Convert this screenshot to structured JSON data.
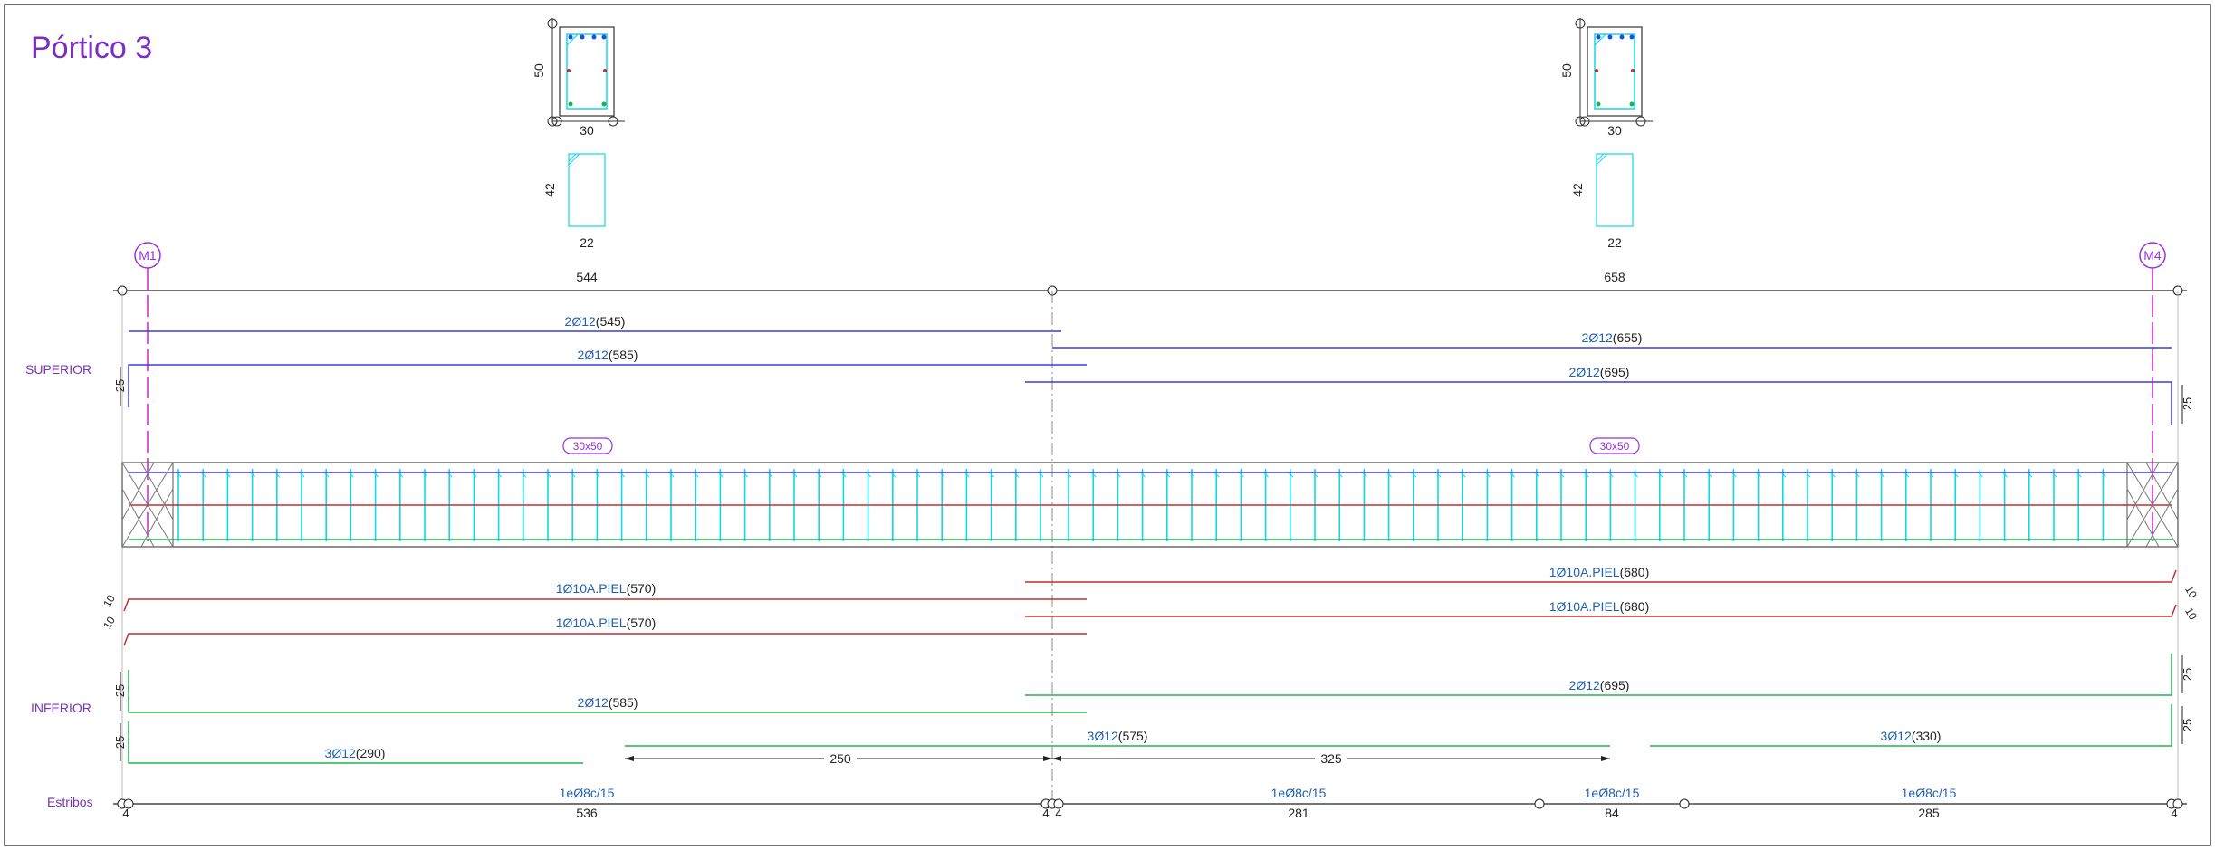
{
  "title": "Pórtico 3",
  "sections": [
    {
      "width": "30",
      "height": "50",
      "stirrup_width": "22",
      "stirrup_height": "42"
    },
    {
      "width": "30",
      "height": "50",
      "stirrup_width": "22",
      "stirrup_height": "42"
    }
  ],
  "axes": [
    {
      "label": "M1",
      "color": "#9b30d9"
    },
    {
      "label": "M4",
      "color": "#9b30d9"
    }
  ],
  "spans": [
    {
      "length": "544",
      "section_label": "30x50"
    },
    {
      "length": "658",
      "section_label": "30x50"
    }
  ],
  "group_labels": {
    "superior": "SUPERIOR",
    "inferior": "INFERIOR",
    "estribos": "Estribos"
  },
  "top_bars": [
    {
      "spec": "2Ø12",
      "length": "(545)"
    },
    {
      "spec": "2Ø12",
      "length": "(585)"
    },
    {
      "spec": "2Ø12",
      "length": "(655)"
    },
    {
      "spec": "2Ø12",
      "length": "(695)"
    }
  ],
  "skin_bars": [
    {
      "spec": "1Ø10A.PIEL",
      "length": "(570)"
    },
    {
      "spec": "1Ø10A.PIEL",
      "length": "(570)"
    },
    {
      "spec": "1Ø10A.PIEL",
      "length": "(680)"
    },
    {
      "spec": "1Ø10A.PIEL",
      "length": "(680)"
    }
  ],
  "bottom_bars": [
    {
      "spec": "2Ø12",
      "length": "(585)"
    },
    {
      "spec": "3Ø12",
      "length": "(290)"
    },
    {
      "spec": "2Ø12",
      "length": "(695)"
    },
    {
      "spec": "3Ø12",
      "length": "(575)"
    },
    {
      "spec": "3Ø12",
      "length": "(330)"
    }
  ],
  "hook_dims": {
    "top": "25",
    "skin": "10",
    "bottom": "25"
  },
  "dimensions": {
    "left": "250",
    "right": "325"
  },
  "stirrup_zones": [
    {
      "spec": "1eØ8c/15",
      "length": "536"
    },
    {
      "spec": "1eØ8c/15",
      "length": "281"
    },
    {
      "spec": "1eØ8c/15",
      "length": "84"
    },
    {
      "spec": "1eØ8c/15",
      "length": "285"
    }
  ],
  "stirrup_end_offsets": [
    "4",
    "4",
    "4",
    "4"
  ],
  "colors": {
    "title": "#7b2fbf",
    "top_rebar": "#3b3bdf",
    "skin_rebar": "#c03030",
    "bottom_rebar": "#20b050",
    "stirrup": "#10d8e8",
    "axis": "#d020d0",
    "label_blue": "#2060b0",
    "dim_line": "#222222"
  }
}
